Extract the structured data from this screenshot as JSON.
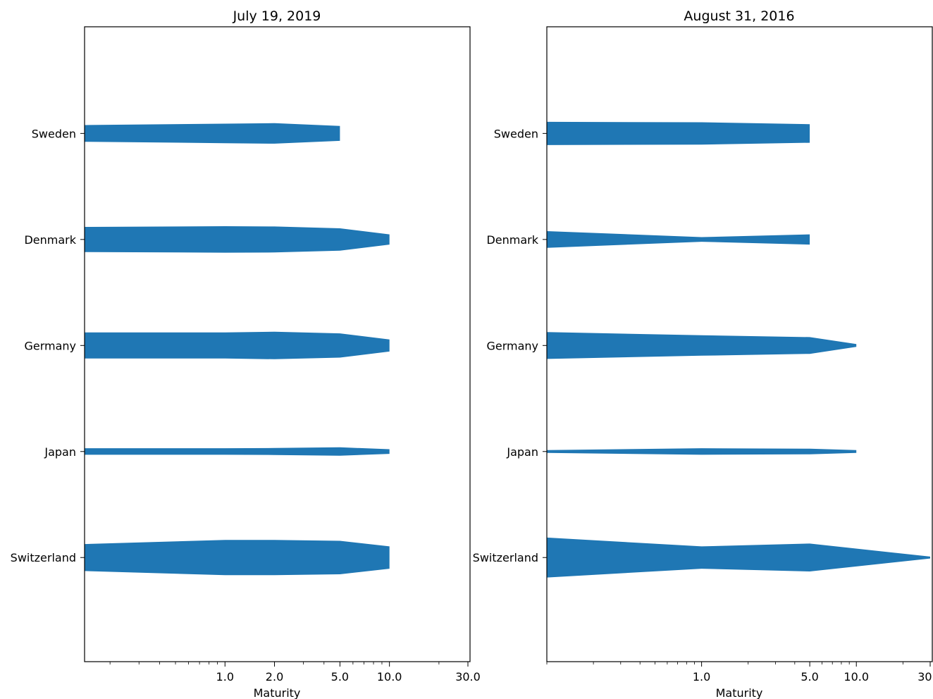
{
  "chart_data": [
    {
      "type": "area",
      "title": "July 19, 2019",
      "xlabel": "Maturity",
      "ylabel": "",
      "x_scale": "log",
      "x_ticks": [
        1.0,
        2.0,
        5.0,
        10.0,
        30.0
      ],
      "x_tick_labels": [
        "1.0",
        "2.0",
        "5.0",
        "10.0",
        "30.0"
      ],
      "xlim": [
        0.14,
        30.0
      ],
      "categories": [
        "Sweden",
        "Denmark",
        "Germany",
        "Japan",
        "Switzerland"
      ],
      "color": "#1f77b4",
      "series": [
        {
          "name": "Sweden",
          "x": [
            0.14,
            1.0,
            2.0,
            5.0
          ],
          "values": [
            0.36,
            0.42,
            0.44,
            0.32
          ]
        },
        {
          "name": "Denmark",
          "x": [
            0.14,
            1.0,
            2.0,
            5.0,
            10.0
          ],
          "values": [
            0.54,
            0.57,
            0.56,
            0.48,
            0.22
          ]
        },
        {
          "name": "Germany",
          "x": [
            0.14,
            1.0,
            2.0,
            5.0,
            10.0
          ],
          "values": [
            0.56,
            0.56,
            0.59,
            0.52,
            0.26
          ]
        },
        {
          "name": "Japan",
          "x": [
            0.14,
            1.0,
            2.0,
            5.0,
            10.0
          ],
          "values": [
            0.14,
            0.14,
            0.15,
            0.18,
            0.1
          ]
        },
        {
          "name": "Switzerland",
          "x": [
            0.14,
            1.0,
            2.0,
            5.0,
            10.0
          ],
          "values": [
            0.58,
            0.76,
            0.76,
            0.72,
            0.48
          ]
        }
      ]
    },
    {
      "type": "area",
      "title": "August 31, 2016",
      "xlabel": "Maturity",
      "ylabel": "",
      "x_scale": "log",
      "x_ticks": [
        1.0,
        5.0,
        10.0,
        30.0
      ],
      "x_tick_labels": [
        "1.0",
        "5.0",
        "10.0",
        "30.0"
      ],
      "xlim": [
        0.1,
        30.0
      ],
      "categories": [
        "Sweden",
        "Denmark",
        "Germany",
        "Japan",
        "Switzerland"
      ],
      "color": "#1f77b4",
      "series": [
        {
          "name": "Sweden",
          "x": [
            0.1,
            1.0,
            5.0
          ],
          "values": [
            0.5,
            0.48,
            0.4
          ]
        },
        {
          "name": "Denmark",
          "x": [
            0.1,
            1.0,
            5.0
          ],
          "values": [
            0.36,
            0.1,
            0.22
          ]
        },
        {
          "name": "Germany",
          "x": [
            0.1,
            1.0,
            5.0,
            10.0
          ],
          "values": [
            0.58,
            0.44,
            0.36,
            0.06
          ]
        },
        {
          "name": "Japan",
          "x": [
            0.1,
            1.0,
            5.0,
            10.0
          ],
          "values": [
            0.06,
            0.14,
            0.12,
            0.06
          ]
        },
        {
          "name": "Switzerland",
          "x": [
            0.1,
            1.0,
            5.0,
            30.0
          ],
          "values": [
            0.86,
            0.48,
            0.6,
            0.04
          ]
        }
      ]
    }
  ]
}
